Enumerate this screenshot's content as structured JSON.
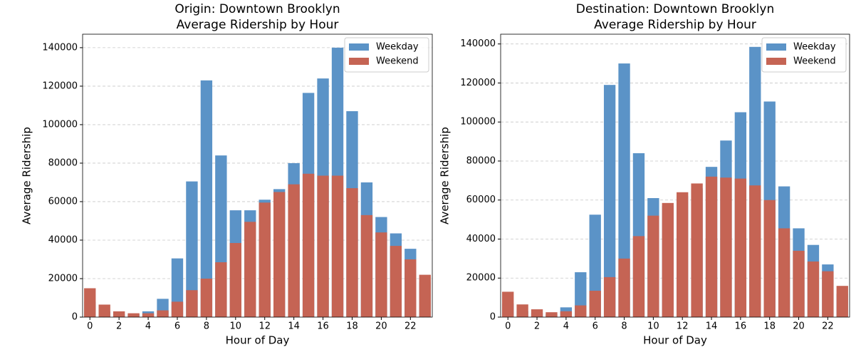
{
  "chart_data": [
    {
      "type": "bar",
      "title": [
        "Origin: Downtown Brooklyn",
        "Average Ridership by Hour"
      ],
      "x_label": "Hour of Day",
      "y_label": "Average Ridership",
      "x": [
        0,
        1,
        2,
        3,
        4,
        5,
        6,
        7,
        8,
        9,
        10,
        11,
        12,
        13,
        14,
        15,
        16,
        17,
        18,
        19,
        20,
        21,
        22,
        23
      ],
      "series": [
        {
          "name": "Weekday",
          "color": "#5b93c7",
          "values": [
            8000,
            3000,
            1500,
            1500,
            3000,
            9500,
            30500,
            70500,
            123000,
            84000,
            55500,
            55500,
            61000,
            66500,
            80000,
            116500,
            124000,
            140000,
            107000,
            70000,
            52000,
            43500,
            35500,
            18000
          ]
        },
        {
          "name": "Weekend",
          "color": "#c56454",
          "values": [
            15000,
            6500,
            3000,
            2000,
            2000,
            3500,
            8000,
            14000,
            20000,
            28500,
            38500,
            49500,
            59500,
            65000,
            69000,
            74500,
            73500,
            73500,
            67000,
            53000,
            44000,
            37000,
            30000,
            22000
          ]
        }
      ],
      "xlim": [
        -0.5,
        23.5
      ],
      "xticks": [
        0,
        2,
        4,
        6,
        8,
        10,
        12,
        14,
        16,
        18,
        20,
        22
      ],
      "ylim": [
        0,
        147000
      ],
      "yticks": [
        0,
        20000,
        40000,
        60000,
        80000,
        100000,
        120000,
        140000
      ],
      "grid": true,
      "legend": "upper right"
    },
    {
      "type": "bar",
      "title": [
        "Destination: Downtown Brooklyn",
        "Average Ridership by Hour"
      ],
      "x_label": "Hour of Day",
      "y_label": "Average Ridership",
      "x": [
        0,
        1,
        2,
        3,
        4,
        5,
        6,
        7,
        8,
        9,
        10,
        11,
        12,
        13,
        14,
        15,
        16,
        17,
        18,
        19,
        20,
        21,
        22,
        23
      ],
      "series": [
        {
          "name": "Weekday",
          "color": "#5b93c7",
          "values": [
            7000,
            3000,
            2000,
            1500,
            5000,
            23000,
            52500,
            119000,
            130000,
            84000,
            61000,
            57000,
            62000,
            66000,
            77000,
            90500,
            105000,
            138500,
            110500,
            67000,
            45500,
            37000,
            27000,
            12000
          ]
        },
        {
          "name": "Weekend",
          "color": "#c56454",
          "values": [
            13000,
            6500,
            4000,
            2500,
            3000,
            6000,
            13500,
            20500,
            30000,
            41500,
            52000,
            58500,
            64000,
            68500,
            72000,
            71500,
            71000,
            67500,
            60000,
            45500,
            34000,
            28500,
            23500,
            16000
          ]
        }
      ],
      "xlim": [
        -0.5,
        23.5
      ],
      "xticks": [
        0,
        2,
        4,
        6,
        8,
        10,
        12,
        14,
        16,
        18,
        20,
        22
      ],
      "ylim": [
        0,
        145000
      ],
      "yticks": [
        0,
        20000,
        40000,
        60000,
        80000,
        100000,
        120000,
        140000
      ],
      "grid": true,
      "legend": "upper right"
    }
  ]
}
